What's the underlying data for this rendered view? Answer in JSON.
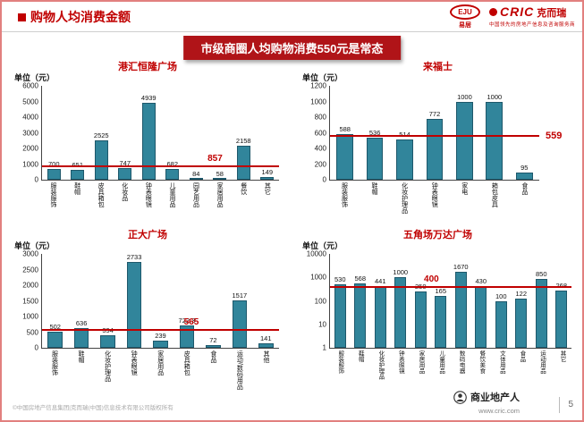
{
  "page": {
    "title": "购物人均消费金额",
    "banner": "市级商圈人均购物消费550元是常态",
    "footer_left": "©中国房地产信息集团|克而瑞(中国)信息技术有限公司版权所有",
    "footer_brand": "商业地产人",
    "footer_url": "www.cric.com",
    "page_number": "5"
  },
  "logos": {
    "eju_text": "EJU",
    "eju_sub": "易居",
    "cric_text": "CRIC",
    "cric_cn": "克而瑞",
    "cric_tagline": "中国领先的房地产信息及咨询服务商"
  },
  "colors": {
    "bar": "#31859B",
    "avg_line": "#C00000"
  },
  "chart_data": [
    {
      "type": "bar",
      "title": "港汇恒隆广场",
      "unit_label": "单位（元）",
      "categories": [
        "服装服饰",
        "鞋帽",
        "皮具箱包",
        "化妆品",
        "钟表眼镜",
        "儿童用品",
        "园艺用品",
        "家居用品",
        "餐饮",
        "其它"
      ],
      "values": [
        700,
        651,
        2525,
        747,
        4939,
        682,
        84,
        58,
        2158,
        149
      ],
      "avg_line": 857,
      "avg_label": "857",
      "avg_label_x": 73,
      "y_ticks": [
        0,
        1000,
        2000,
        3000,
        4000,
        5000,
        6000
      ],
      "ylim": [
        0,
        6000
      ],
      "scale": "linear",
      "grid": false
    },
    {
      "type": "bar",
      "title": "来福士",
      "unit_label": "单位（元）",
      "categories": [
        "服装服饰",
        "鞋帽",
        "化妆护理品",
        "钟表眼镜",
        "家电",
        "箱包皮具",
        "食品"
      ],
      "values": [
        588,
        536,
        514,
        772,
        1000,
        1000,
        95
      ],
      "avg_line": 559,
      "avg_label": "559",
      "avg_label_x": 108,
      "y_ticks": [
        0,
        200,
        400,
        600,
        800,
        1000,
        1200
      ],
      "ylim": [
        0,
        1200
      ],
      "scale": "linear",
      "grid": false
    },
    {
      "type": "bar",
      "title": "正大广场",
      "unit_label": "单位（元）",
      "categories": [
        "服装服饰",
        "鞋帽",
        "化妆护理品",
        "钟表眼镜",
        "家居用品",
        "皮具箱包",
        "食品",
        "运动/数码用品",
        "其他"
      ],
      "values": [
        502,
        636,
        394,
        2733,
        239,
        722.3,
        72,
        1517,
        141
      ],
      "avg_line": 565,
      "avg_label": "565",
      "avg_label_x": 63,
      "y_ticks": [
        0,
        500,
        1000,
        1500,
        2000,
        2500,
        3000
      ],
      "ylim": [
        0,
        3000
      ],
      "scale": "linear",
      "grid": false
    },
    {
      "type": "bar",
      "title": "五角场万达广场",
      "unit_label": "单位（元）",
      "categories": [
        "服装服饰",
        "鞋帽",
        "化妆护理品",
        "钟表眼镜",
        "家居用品",
        "儿童用品",
        "数码电器",
        "餐饮美食",
        "文体用品",
        "食品",
        "运动用品",
        "其它"
      ],
      "values": [
        530,
        568,
        441,
        1000,
        250,
        165,
        1670,
        430,
        100,
        122,
        850,
        268
      ],
      "avg_line": 400,
      "avg_label": "400",
      "avg_label_x": 42,
      "y_ticks": [
        1,
        10,
        100,
        1000,
        10000
      ],
      "ylim": [
        1,
        10000
      ],
      "scale": "log",
      "grid": false
    }
  ]
}
